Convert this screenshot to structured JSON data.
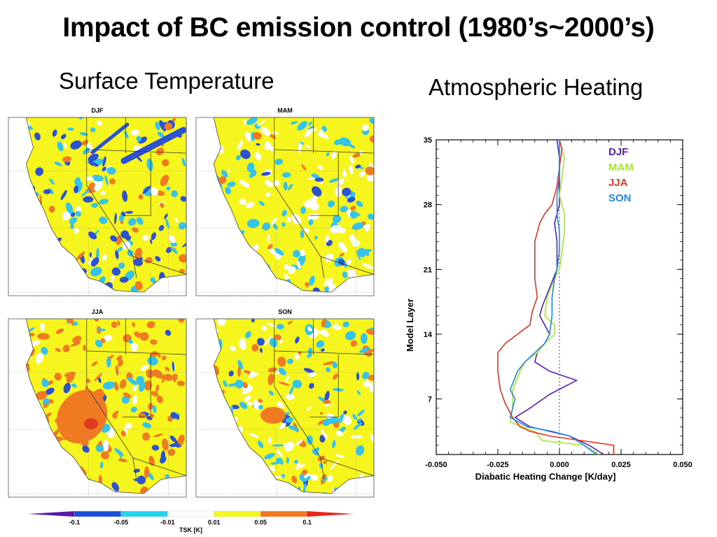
{
  "title": "Impact of BC emission control (1980’s~2000’s)",
  "subtitle_left": "Surface Temperature",
  "subtitle_right": "Atmospheric Heating",
  "maps": {
    "panels": [
      "DJF",
      "MAM",
      "JJA",
      "SON"
    ],
    "colorbar": {
      "ticks": [
        "-0.1",
        "-0.05",
        "-0.01",
        "0.01",
        "0.05",
        "0.1"
      ],
      "label": "TSK [K]",
      "colors": [
        "#5a1aa8",
        "#1a50d8",
        "#22d4ee",
        "#ffffff",
        "#f6f51e",
        "#f07820",
        "#e8281c"
      ]
    },
    "colors": {
      "white": "#ffffff",
      "yellow": "#f6f51e",
      "orange": "#ef7a22",
      "red": "#e23a1c",
      "cyan": "#35c3ea",
      "blue": "#2c52d0"
    }
  },
  "chart_data": {
    "type": "line",
    "xlabel": "Diabatic Heating Change [K/day]",
    "ylabel": "Model Layer",
    "xlim": [
      -0.05,
      0.05
    ],
    "ylim": [
      1,
      35
    ],
    "xticks": [
      "-0.050",
      "-0.025",
      "0.000",
      "0.025",
      "0.050"
    ],
    "yticks": [
      "7",
      "14",
      "21",
      "28",
      "35"
    ],
    "zero_line": "dotted",
    "legend_position": "top-right",
    "series": [
      {
        "name": "DJF",
        "color": "#5520c0",
        "points": [
          [
            0.018,
            1
          ],
          [
            0.012,
            2
          ],
          [
            0.004,
            3
          ],
          [
            -0.004,
            3.5
          ],
          [
            -0.012,
            4
          ],
          [
            -0.018,
            5
          ],
          [
            -0.012,
            6
          ],
          [
            -0.004,
            7.5
          ],
          [
            0.007,
            9
          ],
          [
            -0.004,
            10
          ],
          [
            -0.01,
            11
          ],
          [
            -0.009,
            12
          ],
          [
            -0.006,
            13
          ],
          [
            -0.004,
            14
          ],
          [
            -0.006,
            15
          ],
          [
            -0.008,
            16
          ],
          [
            -0.007,
            17
          ],
          [
            -0.004,
            19
          ],
          [
            -0.001,
            21
          ],
          [
            -0.001,
            24
          ],
          [
            -0.002,
            26
          ],
          [
            0.0,
            28
          ],
          [
            0.0,
            31
          ],
          [
            0.0,
            33
          ],
          [
            -0.001,
            35
          ]
        ]
      },
      {
        "name": "MAM",
        "color": "#a8e830",
        "points": [
          [
            0.016,
            1
          ],
          [
            0.01,
            2
          ],
          [
            -0.007,
            2.5
          ],
          [
            -0.01,
            3.5
          ],
          [
            -0.02,
            4.5
          ],
          [
            -0.019,
            6
          ],
          [
            -0.019,
            8
          ],
          [
            -0.016,
            10
          ],
          [
            -0.014,
            11
          ],
          [
            -0.009,
            12
          ],
          [
            -0.006,
            13
          ],
          [
            -0.002,
            14
          ],
          [
            -0.002,
            15
          ],
          [
            -0.006,
            16
          ],
          [
            -0.005,
            18
          ],
          [
            -0.002,
            20
          ],
          [
            0.0,
            21
          ],
          [
            0.001,
            23
          ],
          [
            0.002,
            25
          ],
          [
            0.002,
            27
          ],
          [
            0.0,
            29
          ],
          [
            0.001,
            31
          ],
          [
            0.002,
            33
          ],
          [
            0.0,
            35
          ]
        ]
      },
      {
        "name": "JJA",
        "color": "#e8341c",
        "points": [
          [
            0.022,
            1
          ],
          [
            0.022,
            2
          ],
          [
            -0.004,
            3
          ],
          [
            -0.012,
            3.5
          ],
          [
            -0.016,
            4
          ],
          [
            -0.019,
            5
          ],
          [
            -0.022,
            6.5
          ],
          [
            -0.024,
            8
          ],
          [
            -0.025,
            10
          ],
          [
            -0.025,
            12
          ],
          [
            -0.022,
            13
          ],
          [
            -0.017,
            14
          ],
          [
            -0.012,
            15
          ],
          [
            -0.011,
            16.5
          ],
          [
            -0.009,
            18
          ],
          [
            -0.01,
            20
          ],
          [
            -0.01,
            22
          ],
          [
            -0.01,
            24
          ],
          [
            -0.008,
            26
          ],
          [
            -0.006,
            27
          ],
          [
            -0.003,
            28
          ],
          [
            -0.001,
            30
          ],
          [
            0.0,
            32
          ],
          [
            0.001,
            34
          ],
          [
            0.0,
            35
          ]
        ]
      },
      {
        "name": "SON",
        "color": "#1e88e0",
        "points": [
          [
            0.015,
            1
          ],
          [
            0.01,
            2
          ],
          [
            0.004,
            3
          ],
          [
            -0.003,
            3.5
          ],
          [
            -0.013,
            4
          ],
          [
            -0.02,
            5
          ],
          [
            -0.018,
            7
          ],
          [
            -0.02,
            8
          ],
          [
            -0.017,
            10
          ],
          [
            -0.014,
            11
          ],
          [
            -0.01,
            12
          ],
          [
            -0.006,
            13
          ],
          [
            -0.004,
            14
          ],
          [
            -0.003,
            16
          ],
          [
            -0.003,
            18
          ],
          [
            -0.002,
            20
          ],
          [
            -0.001,
            21
          ],
          [
            0.0,
            23
          ],
          [
            0.0,
            25
          ],
          [
            -0.001,
            27
          ],
          [
            -0.001,
            29
          ],
          [
            0.0,
            31
          ],
          [
            0.0,
            33
          ],
          [
            0.0,
            35
          ]
        ]
      }
    ]
  }
}
